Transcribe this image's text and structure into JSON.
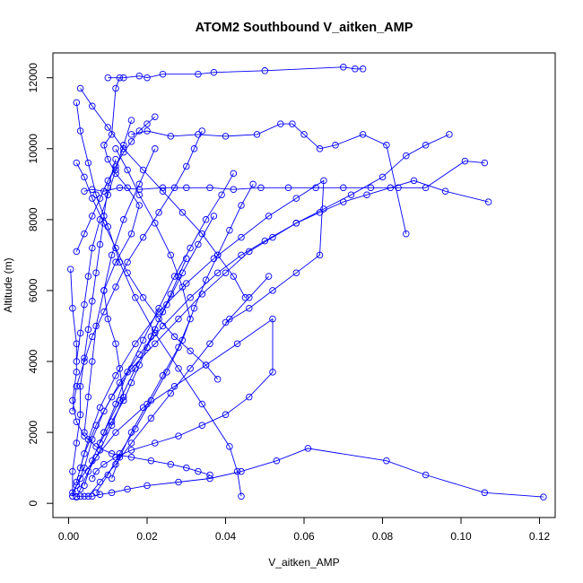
{
  "chart_data": {
    "type": "line",
    "title": "ATOM2 Southbound V_aitken_AMP",
    "xlabel": "V_aitken_AMP",
    "ylabel": "Altitude (m)",
    "xlim": [
      -0.004,
      0.124
    ],
    "ylim": [
      -400,
      12700
    ],
    "xticks": [
      0.0,
      0.02,
      0.04,
      0.06,
      0.08,
      0.1,
      0.12
    ],
    "xtick_labels": [
      "0.00",
      "0.02",
      "0.04",
      "0.06",
      "0.08",
      "0.10",
      "0.12"
    ],
    "yticks": [
      0,
      2000,
      4000,
      6000,
      8000,
      10000,
      12000
    ],
    "ytick_labels": [
      "0",
      "2000",
      "4000",
      "6000",
      "8000",
      "10000",
      "12000"
    ],
    "grid": false,
    "legend": "none",
    "marker": "open-circle",
    "series_color": "#0000ff",
    "series": [
      {
        "x": [
          0.002,
          0.003,
          0.005,
          0.008,
          0.011,
          0.014,
          0.013,
          0.012,
          0.01,
          0.009,
          0.012,
          0.016,
          0.018,
          0.015,
          0.012,
          0.01,
          0.009,
          0.011,
          0.012,
          0.013
        ],
        "y": [
          180,
          400,
          900,
          1500,
          2200,
          3000,
          3800,
          4500,
          5200,
          6000,
          6800,
          7600,
          8400,
          8900,
          9300,
          9700,
          10100,
          10400,
          11700,
          12000
        ]
      },
      {
        "x": [
          0.001,
          0.002,
          0.004,
          0.006,
          0.009,
          0.013,
          0.018,
          0.024,
          0.031,
          0.038,
          0.044,
          0.05,
          0.058,
          0.065,
          0.072,
          0.08,
          0.086,
          0.091,
          0.097
        ],
        "y": [
          200,
          500,
          1000,
          1800,
          2600,
          3400,
          4200,
          5000,
          5800,
          6500,
          7000,
          7400,
          7900,
          8300,
          8700,
          9200,
          9800,
          10100,
          10400
        ]
      },
      {
        "x": [
          0.121,
          0.106,
          0.091,
          0.081,
          0.061,
          0.053,
          0.044,
          0.036,
          0.028,
          0.02,
          0.015,
          0.011,
          0.008,
          0.006,
          0.004,
          0.003,
          0.002,
          0.002
        ],
        "y": [
          180,
          300,
          800,
          1200,
          1550,
          1200,
          900,
          700,
          600,
          500,
          400,
          300,
          250,
          200,
          200,
          200,
          190,
          180
        ]
      },
      {
        "x": [
          0.001,
          0.003,
          0.007,
          0.012,
          0.019,
          0.027,
          0.035,
          0.043,
          0.052,
          0.052,
          0.046,
          0.04,
          0.034,
          0.028,
          0.022,
          0.016,
          0.012,
          0.009,
          0.007,
          0.006
        ],
        "y": [
          300,
          700,
          1300,
          2000,
          2700,
          3300,
          3900,
          4500,
          5200,
          3700,
          3000,
          2500,
          2200,
          1900,
          1700,
          1500,
          1300,
          1100,
          900,
          700
        ]
      },
      {
        "x": [
          0.004,
          0.006,
          0.009,
          0.013,
          0.018,
          0.024,
          0.03,
          0.036,
          0.042,
          0.049,
          0.056,
          0.063,
          0.07,
          0.077,
          0.084,
          0.091,
          0.101,
          0.106
        ],
        "y": [
          8800,
          8850,
          8800,
          8900,
          8850,
          8900,
          8900,
          8900,
          8850,
          8900,
          8900,
          8900,
          8900,
          8900,
          8900,
          8900,
          9650,
          9600
        ]
      },
      {
        "x": [
          0.002,
          0.004,
          0.007,
          0.011,
          0.016,
          0.022,
          0.028,
          0.034,
          0.04,
          0.046,
          0.052,
          0.058,
          0.064,
          0.07,
          0.076,
          0.082,
          0.088,
          0.096,
          0.107
        ],
        "y": [
          600,
          1400,
          2200,
          3000,
          3800,
          4500,
          5200,
          5900,
          6500,
          7100,
          7500,
          7900,
          8200,
          8500,
          8700,
          8900,
          9100,
          8800,
          8500
        ]
      },
      {
        "x": [
          0.003,
          0.005,
          0.008,
          0.012,
          0.017,
          0.023,
          0.03,
          0.037,
          0.044,
          0.051,
          0.058,
          0.065,
          0.064,
          0.058,
          0.052,
          0.046,
          0.04
        ],
        "y": [
          1000,
          1800,
          2700,
          3600,
          4500,
          5400,
          6200,
          6900,
          7500,
          8100,
          8600,
          9100,
          7000,
          6500,
          6000,
          5500,
          5100
        ]
      },
      {
        "x": [
          0.016,
          0.02,
          0.026,
          0.033,
          0.04,
          0.048,
          0.054,
          0.057,
          0.06,
          0.064,
          0.068,
          0.075,
          0.081,
          0.086
        ],
        "y": [
          10400,
          10500,
          10350,
          10400,
          10350,
          10400,
          10700,
          10700,
          10400,
          10000,
          10100,
          10400,
          10100,
          7600
        ]
      },
      {
        "x": [
          0.01,
          0.014,
          0.018,
          0.02,
          0.024,
          0.033,
          0.037,
          0.05,
          0.07,
          0.073,
          0.075
        ],
        "y": [
          12000,
          12000,
          12050,
          12000,
          12100,
          12100,
          12150,
          12200,
          12300,
          12250,
          12250
        ]
      },
      {
        "x": [
          0.0005,
          0.001,
          0.002,
          0.002,
          0.001,
          0.002,
          0.004,
          0.007,
          0.011,
          0.016,
          0.021,
          0.026,
          0.03,
          0.033,
          0.036
        ],
        "y": [
          6600,
          5500,
          4500,
          3700,
          2900,
          2300,
          1900,
          1600,
          1400,
          1300,
          1200,
          1100,
          1000,
          900,
          800
        ]
      },
      {
        "x": [
          0.002,
          0.004,
          0.006,
          0.009,
          0.012,
          0.015,
          0.019,
          0.023,
          0.027,
          0.031,
          0.035,
          0.038
        ],
        "y": [
          9600,
          9200,
          8600,
          7900,
          7200,
          6500,
          5800,
          5200,
          4700,
          4300,
          3900,
          3500
        ]
      },
      {
        "x": [
          0.002,
          0.003,
          0.005,
          0.007,
          0.01,
          0.013,
          0.017,
          0.022,
          0.028,
          0.034,
          0.041,
          0.043,
          0.044
        ],
        "y": [
          11300,
          10500,
          9600,
          8700,
          7800,
          6800,
          5800,
          4800,
          3800,
          2800,
          1600,
          900,
          200
        ]
      },
      {
        "x": [
          0.005,
          0.008,
          0.012,
          0.016,
          0.021,
          0.026,
          0.031,
          0.036,
          0.041,
          0.046,
          0.051
        ],
        "y": [
          200,
          600,
          1100,
          1700,
          2400,
          3100,
          3800,
          4500,
          5200,
          5800,
          6400
        ]
      },
      {
        "x": [
          0.003,
          0.006,
          0.01,
          0.014,
          0.019,
          0.024,
          0.029,
          0.034,
          0.038,
          0.042,
          0.045
        ],
        "y": [
          11700,
          11200,
          10600,
          10000,
          9400,
          8800,
          8200,
          7600,
          7000,
          6400,
          5800
        ]
      },
      {
        "x": [
          0.001,
          0.002,
          0.004,
          0.006,
          0.009,
          0.012,
          0.015,
          0.019,
          0.023,
          0.027,
          0.03,
          0.032,
          0.034
        ],
        "y": [
          2600,
          3300,
          4000,
          4700,
          5400,
          6100,
          6800,
          7500,
          8200,
          8900,
          9500,
          10000,
          10500
        ]
      },
      {
        "x": [
          0.004,
          0.006,
          0.009,
          0.013,
          0.017,
          0.021,
          0.025,
          0.029,
          0.033,
          0.037
        ],
        "y": [
          500,
          1200,
          2000,
          2900,
          3800,
          4700,
          5600,
          6500,
          7300,
          8100
        ]
      },
      {
        "x": [
          0.007,
          0.01,
          0.013,
          0.017,
          0.021,
          0.025,
          0.029,
          0.032,
          0.035,
          0.038,
          0.041,
          0.044,
          0.047
        ],
        "y": [
          300,
          800,
          1400,
          2100,
          2900,
          3700,
          4600,
          5500,
          6300,
          7000,
          7700,
          8400,
          9000
        ]
      },
      {
        "x": [
          0.012,
          0.015,
          0.018,
          0.022,
          0.026,
          0.029,
          0.031,
          0.028,
          0.024,
          0.02,
          0.016,
          0.013,
          0.011
        ],
        "y": [
          10000,
          9400,
          8700,
          7900,
          7000,
          6100,
          5200,
          4400,
          3600,
          2800,
          2000,
          1300,
          700
        ]
      },
      {
        "x": [
          0.008,
          0.011,
          0.014,
          0.016,
          0.018,
          0.02,
          0.022,
          0.024,
          0.026,
          0.028,
          0.03
        ],
        "y": [
          1700,
          2300,
          2900,
          3400,
          3900,
          4400,
          4900,
          5400,
          5900,
          6400,
          6900
        ]
      },
      {
        "x": [
          0.001,
          0.001,
          0.002,
          0.003,
          0.003,
          0.004,
          0.005,
          0.006,
          0.007,
          0.008,
          0.009,
          0.01,
          0.012
        ],
        "y": [
          200,
          900,
          1700,
          2500,
          3300,
          4100,
          4900,
          5700,
          6500,
          7300,
          8100,
          8900,
          9700
        ]
      },
      {
        "x": [
          0.016,
          0.014,
          0.012,
          0.01,
          0.008,
          0.006,
          0.005,
          0.004,
          0.003,
          0.002
        ],
        "y": [
          10800,
          10100,
          9400,
          8700,
          8000,
          7200,
          6400,
          5600,
          4800,
          4000
        ]
      },
      {
        "x": [
          0.022,
          0.018,
          0.014,
          0.011,
          0.009,
          0.007,
          0.006,
          0.005,
          0.004
        ],
        "y": [
          10000,
          9000,
          8000,
          7000,
          6000,
          5000,
          4000,
          3000,
          2000
        ]
      },
      {
        "x": [
          0.009,
          0.012,
          0.015,
          0.019,
          0.023,
          0.027,
          0.031,
          0.035,
          0.039,
          0.042
        ],
        "y": [
          2000,
          2800,
          3700,
          4600,
          5500,
          6400,
          7200,
          8000,
          8700,
          9300
        ]
      },
      {
        "x": [
          0.002,
          0.004,
          0.006,
          0.008,
          0.01,
          0.012,
          0.014,
          0.016,
          0.018,
          0.02,
          0.022
        ],
        "y": [
          7100,
          7600,
          8100,
          8600,
          9100,
          9500,
          9900,
          10200,
          10500,
          10700,
          10900
        ]
      }
    ]
  }
}
